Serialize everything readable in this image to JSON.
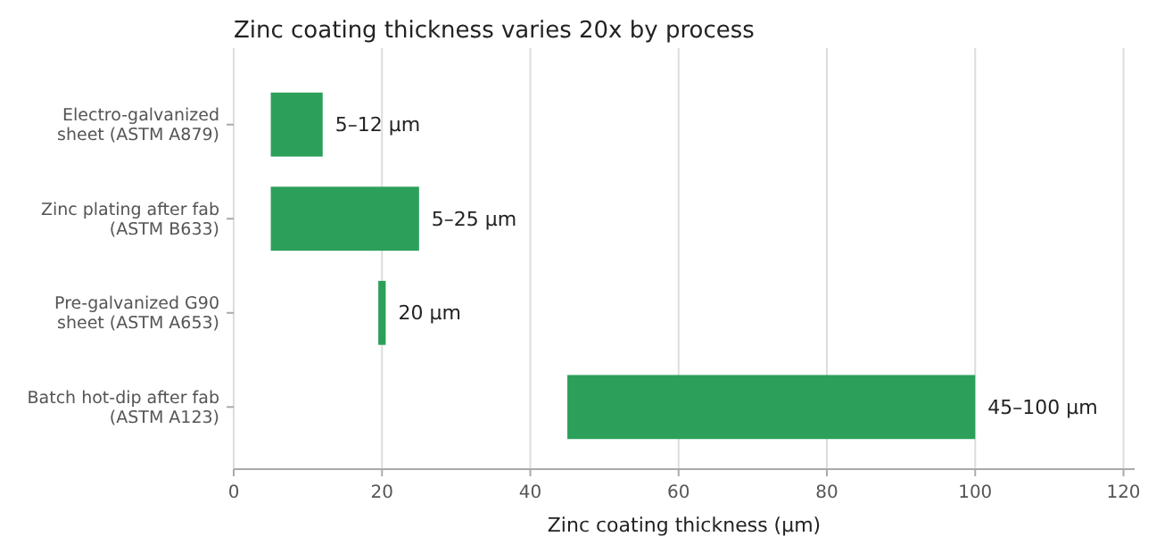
{
  "chart_data": {
    "type": "bar",
    "orientation": "horizontal",
    "title": "Zinc coating thickness varies 20x by process",
    "xlabel": "Zinc coating thickness (µm)",
    "categories": [
      "Electro-galvanized\nsheet (ASTM A879)",
      "Zinc plating after fab\n(ASTM B633)",
      "Pre-galvanized G90\nsheet (ASTM A653)",
      "Batch hot-dip after fab\n(ASTM A123)"
    ],
    "base": [
      5,
      5,
      19.5,
      45
    ],
    "values": [
      7,
      20,
      1,
      55
    ],
    "value_labels": [
      "5–12 µm",
      "5–25 µm",
      "20 µm",
      "45–100 µm"
    ],
    "color": "#2ca05a",
    "xlim": [
      0,
      121.5
    ],
    "xticks": [
      0,
      20,
      40,
      60,
      80,
      100,
      120
    ],
    "grid": "x"
  }
}
